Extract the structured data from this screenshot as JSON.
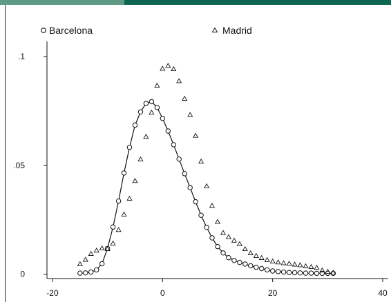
{
  "colors": {
    "bar_left": "#5e9b84",
    "bar_right": "#0d6650",
    "ink": "#111111"
  },
  "chart_data": {
    "type": "scatter",
    "title": "",
    "xlabel": "",
    "ylabel": "",
    "xlim": [
      -21,
      41
    ],
    "ylim": [
      -0.002,
      0.107
    ],
    "xticks": [
      -20,
      0,
      20,
      40
    ],
    "xtick_labels": [
      "-20",
      "0",
      "20",
      "40"
    ],
    "yticks": [
      0,
      0.05,
      0.1
    ],
    "ytick_labels": [
      "0",
      ".05",
      ".1"
    ],
    "grid": false,
    "legend": "top",
    "series": [
      {
        "name": "Barcelona",
        "marker": "circle",
        "connected": true,
        "x": [
          -15,
          -14,
          -13,
          -12,
          -11,
          -10,
          -9,
          -8,
          -7,
          -6,
          -5,
          -4,
          -3,
          -2,
          -1,
          0,
          1,
          2,
          3,
          4,
          5,
          6,
          7,
          8,
          9,
          10,
          11,
          12,
          13,
          14,
          15,
          16,
          17,
          18,
          19,
          20,
          21,
          22,
          23,
          24,
          25,
          26,
          27,
          28,
          29,
          30,
          31
        ],
        "y": [
          0.0005,
          0.0006,
          0.001,
          0.002,
          0.0048,
          0.0118,
          0.0217,
          0.0336,
          0.0465,
          0.0583,
          0.0685,
          0.0746,
          0.0785,
          0.0793,
          0.0766,
          0.0716,
          0.0658,
          0.0595,
          0.0529,
          0.0462,
          0.0398,
          0.0333,
          0.0271,
          0.0215,
          0.0167,
          0.0127,
          0.0098,
          0.0076,
          0.0063,
          0.0054,
          0.0047,
          0.0039,
          0.0032,
          0.0026,
          0.002,
          0.0015,
          0.0012,
          0.001,
          0.0008,
          0.0007,
          0.0006,
          0.0005,
          0.0005,
          0.0004,
          0.0004,
          0.0004,
          0.0004
        ]
      },
      {
        "name": "Madrid",
        "marker": "triangle",
        "connected": false,
        "x": [
          -15,
          -14,
          -13,
          -12,
          -11,
          -10,
          -9,
          -8,
          -7,
          -6,
          -5,
          -4,
          -3,
          -2,
          -1,
          0,
          1,
          2,
          3,
          4,
          5,
          6,
          7,
          8,
          9,
          10,
          11,
          12,
          13,
          14,
          15,
          16,
          17,
          18,
          19,
          20,
          21,
          22,
          23,
          24,
          25,
          26,
          27,
          28,
          29,
          30,
          31
        ],
        "y": [
          0.0047,
          0.0067,
          0.0094,
          0.0109,
          0.0119,
          0.0116,
          0.0142,
          0.0204,
          0.0275,
          0.0348,
          0.0429,
          0.0528,
          0.0632,
          0.0743,
          0.0867,
          0.0945,
          0.0958,
          0.0943,
          0.0888,
          0.0807,
          0.0733,
          0.0637,
          0.0518,
          0.0405,
          0.0315,
          0.0241,
          0.019,
          0.0171,
          0.0155,
          0.0139,
          0.0116,
          0.0097,
          0.0085,
          0.0075,
          0.0066,
          0.0059,
          0.0055,
          0.0051,
          0.0049,
          0.0045,
          0.0042,
          0.0037,
          0.0034,
          0.003,
          0.0018,
          0.0012,
          0.0008
        ]
      }
    ]
  }
}
